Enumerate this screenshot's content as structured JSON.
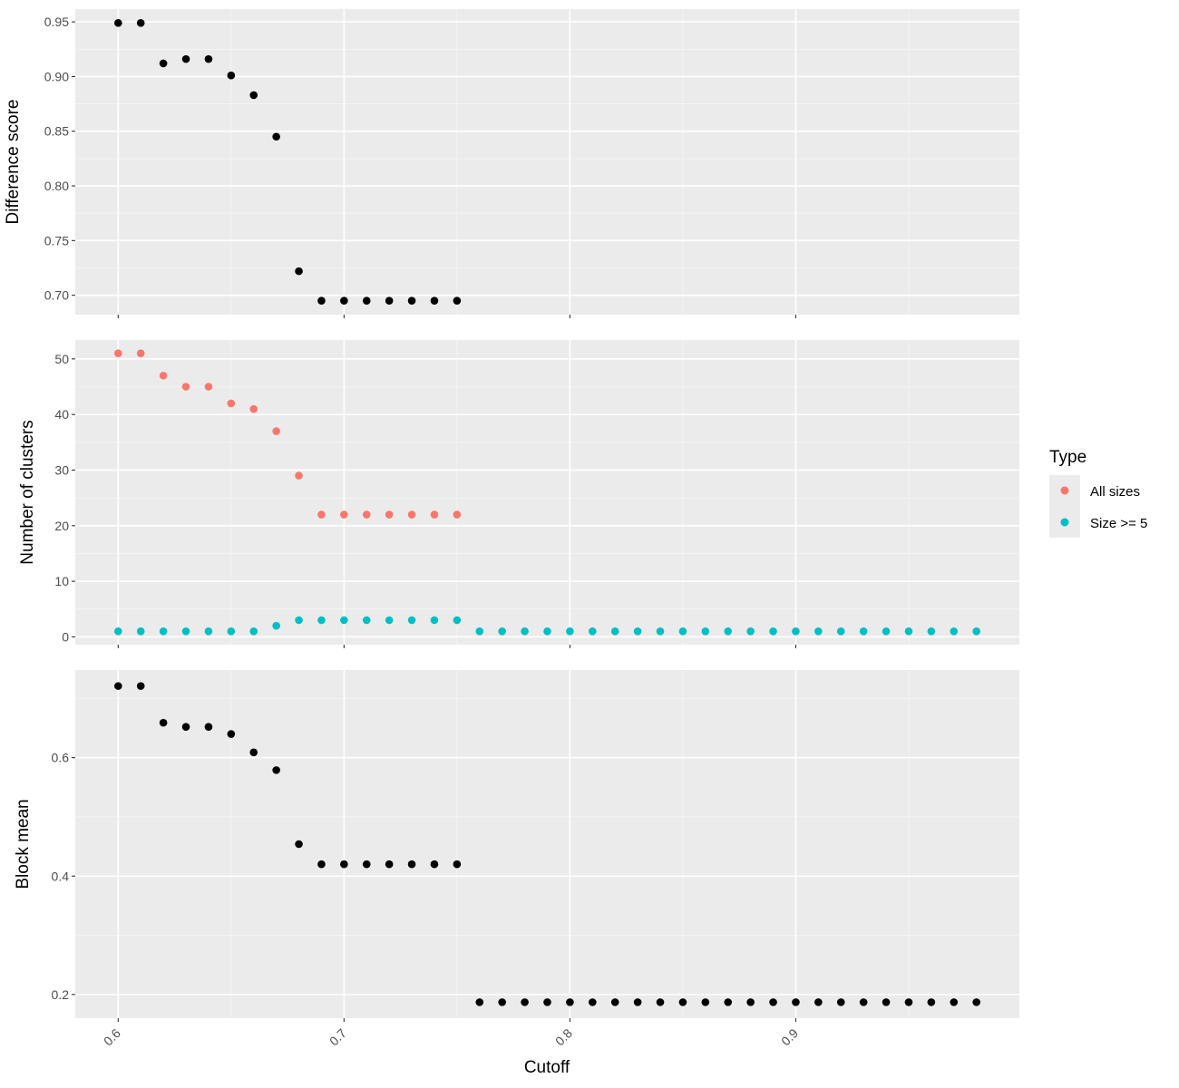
{
  "chart_data": {
    "type": "scatter",
    "x_label": "Cutoff",
    "x_range": [
      0.581,
      0.999
    ],
    "x_ticks": [
      0.6,
      0.7,
      0.8,
      0.9
    ],
    "x_tick_labels": [
      "0.6",
      "0.7",
      "0.8",
      "0.9"
    ],
    "x_tick_label_rotation_deg": -45,
    "grid": true,
    "colors": {
      "panel_background": "#ebebeb",
      "grid_major": "#ffffff",
      "grid_minor": "#f5f5f5",
      "tick_text": "#4d4d4d",
      "tick_mark": "#333333",
      "point_default": "#000000",
      "all_sizes": "#f8766d",
      "size_ge_5": "#00bfc4"
    },
    "legend": {
      "position": "right",
      "title": "Type",
      "entries": [
        {
          "label": "All sizes",
          "color": "#f8766d"
        },
        {
          "label": "Size >= 5",
          "color": "#00bfc4"
        }
      ]
    },
    "panels": [
      {
        "id": "difference-score",
        "y_label": "Difference score",
        "y_range": [
          0.6823,
          0.9617
        ],
        "y_ticks": [
          0.7,
          0.75,
          0.8,
          0.85,
          0.9,
          0.95
        ],
        "y_tick_labels": [
          "0.70",
          "0.75",
          "0.80",
          "0.85",
          "0.90",
          "0.95"
        ],
        "show_x_tick_labels": false,
        "series": [
          {
            "name": "",
            "color": "#000000",
            "x": [
              0.6,
              0.61,
              0.62,
              0.63,
              0.64,
              0.65,
              0.66,
              0.67,
              0.68,
              0.69,
              0.7,
              0.71,
              0.72,
              0.73,
              0.74,
              0.75
            ],
            "y": [
              0.949,
              0.949,
              0.912,
              0.916,
              0.916,
              0.901,
              0.883,
              0.845,
              0.722,
              0.695,
              0.695,
              0.695,
              0.695,
              0.695,
              0.695,
              0.695
            ]
          }
        ]
      },
      {
        "id": "number-of-clusters",
        "y_label": "Number of clusters",
        "y_range": [
          -1.4,
          53.4
        ],
        "y_ticks": [
          0,
          10,
          20,
          30,
          40,
          50
        ],
        "y_tick_labels": [
          "0",
          "10",
          "20",
          "30",
          "40",
          "50"
        ],
        "show_x_tick_labels": false,
        "series": [
          {
            "name": "All sizes",
            "color": "#f8766d",
            "x": [
              0.6,
              0.61,
              0.62,
              0.63,
              0.64,
              0.65,
              0.66,
              0.67,
              0.68,
              0.69,
              0.7,
              0.71,
              0.72,
              0.73,
              0.74,
              0.75
            ],
            "y": [
              51,
              51,
              47,
              45,
              45,
              42,
              41,
              37,
              29,
              22,
              22,
              22,
              22,
              22,
              22,
              22
            ]
          },
          {
            "name": "Size >= 5",
            "color": "#00bfc4",
            "x": [
              0.6,
              0.61,
              0.62,
              0.63,
              0.64,
              0.65,
              0.66,
              0.67,
              0.68,
              0.69,
              0.7,
              0.71,
              0.72,
              0.73,
              0.74,
              0.75,
              0.76,
              0.77,
              0.78,
              0.79,
              0.8,
              0.81,
              0.82,
              0.83,
              0.84,
              0.85,
              0.86,
              0.87,
              0.88,
              0.89,
              0.9,
              0.91,
              0.92,
              0.93,
              0.94,
              0.95,
              0.96,
              0.97,
              0.98
            ],
            "y": [
              1,
              1,
              1,
              1,
              1,
              1,
              1,
              2,
              3,
              3,
              3,
              3,
              3,
              3,
              3,
              3,
              1,
              1,
              1,
              1,
              1,
              1,
              1,
              1,
              1,
              1,
              1,
              1,
              1,
              1,
              1,
              1,
              1,
              1,
              1,
              1,
              1,
              1,
              1
            ]
          }
        ]
      },
      {
        "id": "block-mean",
        "y_label": "Block mean",
        "y_range": [
          0.16,
          0.748
        ],
        "y_ticks": [
          0.2,
          0.4,
          0.6
        ],
        "y_tick_labels": [
          "0.2",
          "0.4",
          "0.6"
        ],
        "show_x_tick_labels": true,
        "series": [
          {
            "name": "",
            "color": "#000000",
            "x": [
              0.6,
              0.61,
              0.62,
              0.63,
              0.64,
              0.65,
              0.66,
              0.67,
              0.68,
              0.69,
              0.7,
              0.71,
              0.72,
              0.73,
              0.74,
              0.75,
              0.76,
              0.77,
              0.78,
              0.79,
              0.8,
              0.81,
              0.82,
              0.83,
              0.84,
              0.85,
              0.86,
              0.87,
              0.88,
              0.89,
              0.9,
              0.91,
              0.92,
              0.93,
              0.94,
              0.95,
              0.96,
              0.97,
              0.98
            ],
            "y": [
              0.721,
              0.721,
              0.659,
              0.652,
              0.652,
              0.64,
              0.609,
              0.579,
              0.454,
              0.42,
              0.42,
              0.42,
              0.42,
              0.42,
              0.42,
              0.42,
              0.187,
              0.187,
              0.187,
              0.187,
              0.187,
              0.187,
              0.187,
              0.187,
              0.187,
              0.187,
              0.187,
              0.187,
              0.187,
              0.187,
              0.187,
              0.187,
              0.187,
              0.187,
              0.187,
              0.187,
              0.187,
              0.187,
              0.187
            ]
          }
        ]
      }
    ]
  }
}
